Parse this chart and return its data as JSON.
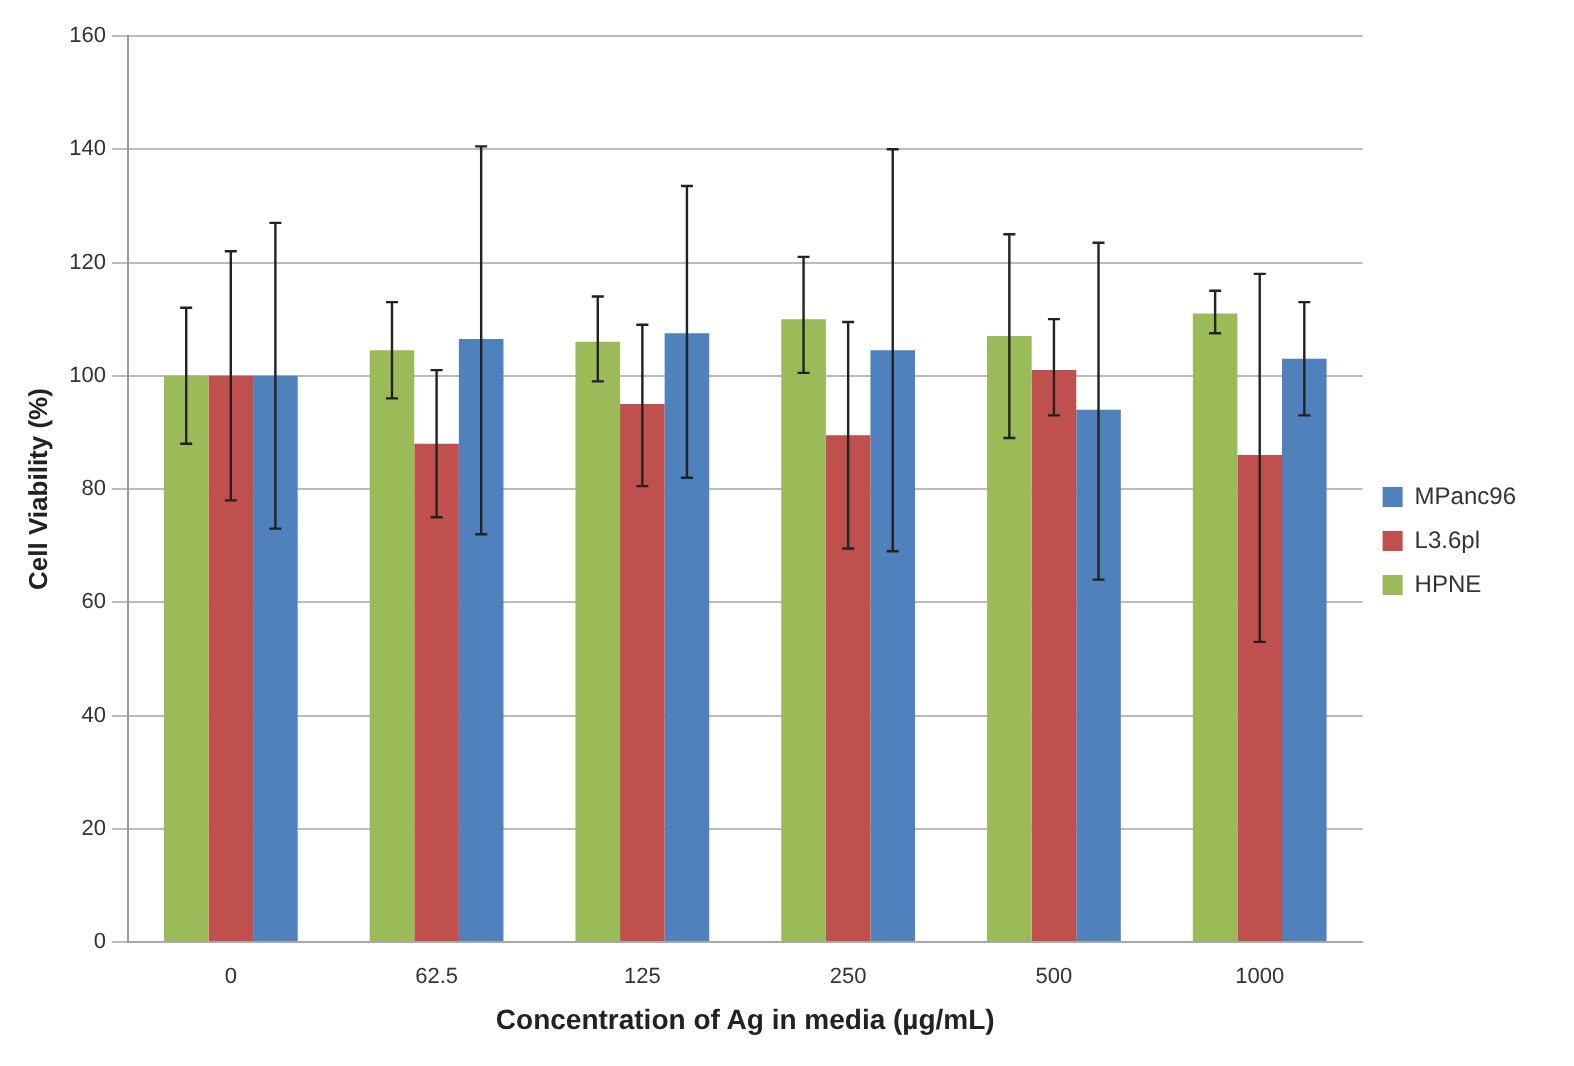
{
  "chart_data": {
    "type": "bar",
    "xlabel": "Concentration of Ag in media (µg/mL)",
    "ylabel": "Cell Viability (%)",
    "categories": [
      "0",
      "62.5",
      "125",
      "250",
      "500",
      "1000"
    ],
    "series": [
      {
        "name": "HPNE",
        "color": "#9bbb59",
        "values": [
          100,
          104.5,
          106,
          110,
          107,
          111
        ],
        "errors": [
          [
            88,
            112
          ],
          [
            96,
            113
          ],
          [
            99,
            114
          ],
          [
            100.5,
            121
          ],
          [
            89,
            125
          ],
          [
            107.5,
            115
          ]
        ]
      },
      {
        "name": "L3.6pl",
        "color": "#c0504d",
        "values": [
          100,
          88,
          95,
          89.5,
          101,
          86
        ],
        "errors": [
          [
            78,
            122
          ],
          [
            75,
            101
          ],
          [
            80.5,
            109
          ],
          [
            69.5,
            109.5
          ],
          [
            93,
            110
          ],
          [
            53,
            118
          ]
        ]
      },
      {
        "name": "MPanc96",
        "color": "#4f81bd",
        "values": [
          100,
          106.5,
          107.5,
          104.5,
          94,
          103
        ],
        "errors": [
          [
            73,
            127
          ],
          [
            72,
            140.5
          ],
          [
            82,
            133.5
          ],
          [
            69,
            140
          ],
          [
            64,
            123.5
          ],
          [
            93,
            113
          ]
        ]
      }
    ],
    "ylim": [
      0,
      160
    ],
    "yticks": [
      0,
      20,
      40,
      60,
      80,
      100,
      120,
      140,
      160
    ],
    "grid": "y",
    "legend": "right"
  }
}
